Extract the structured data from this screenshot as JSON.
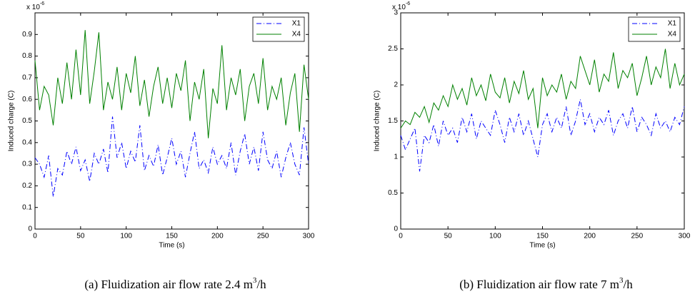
{
  "chart_data": [
    {
      "type": "line",
      "ylabel": "Induced charge (C)",
      "xlabel": "Time (s)",
      "multiplier": "x 10",
      "multiplier_exp": "-6",
      "caption": {
        "text": "(a) Fluidization air flow rate 2.4 m",
        "sup": "3",
        "tail": "/h"
      },
      "xlim": [
        0,
        300
      ],
      "xticks": [
        0,
        50,
        100,
        150,
        200,
        250,
        300
      ],
      "ylim": [
        0,
        1
      ],
      "yticks": [
        0,
        0.1,
        0.2,
        0.3,
        0.4,
        0.5,
        0.6,
        0.7,
        0.8,
        0.9
      ],
      "legend": "upper right",
      "x": [
        0,
        5,
        10,
        15,
        20,
        25,
        30,
        35,
        40,
        45,
        50,
        55,
        60,
        65,
        70,
        75,
        80,
        85,
        90,
        95,
        100,
        105,
        110,
        115,
        120,
        125,
        130,
        135,
        140,
        145,
        150,
        155,
        160,
        165,
        170,
        175,
        180,
        185,
        190,
        195,
        200,
        205,
        210,
        215,
        220,
        225,
        230,
        235,
        240,
        245,
        250,
        255,
        260,
        265,
        270,
        275,
        280,
        285,
        290,
        295,
        300
      ],
      "series": [
        {
          "name": "X1",
          "color": "#0000ff",
          "dashed": true,
          "values": [
            0.33,
            0.3,
            0.24,
            0.34,
            0.15,
            0.28,
            0.25,
            0.36,
            0.3,
            0.38,
            0.27,
            0.32,
            0.22,
            0.35,
            0.3,
            0.37,
            0.26,
            0.52,
            0.33,
            0.4,
            0.28,
            0.36,
            0.31,
            0.48,
            0.27,
            0.34,
            0.29,
            0.39,
            0.25,
            0.33,
            0.42,
            0.3,
            0.36,
            0.24,
            0.35,
            0.45,
            0.28,
            0.32,
            0.26,
            0.38,
            0.3,
            0.34,
            0.28,
            0.4,
            0.25,
            0.36,
            0.44,
            0.3,
            0.38,
            0.27,
            0.45,
            0.32,
            0.28,
            0.36,
            0.24,
            0.33,
            0.4,
            0.3,
            0.25,
            0.47,
            0.3
          ]
        },
        {
          "name": "X4",
          "color": "#008000",
          "dashed": false,
          "values": [
            0.78,
            0.55,
            0.66,
            0.62,
            0.48,
            0.7,
            0.58,
            0.77,
            0.6,
            0.83,
            0.62,
            0.92,
            0.58,
            0.73,
            0.91,
            0.55,
            0.68,
            0.6,
            0.75,
            0.55,
            0.72,
            0.63,
            0.8,
            0.57,
            0.69,
            0.52,
            0.66,
            0.75,
            0.58,
            0.7,
            0.56,
            0.72,
            0.64,
            0.78,
            0.5,
            0.68,
            0.6,
            0.74,
            0.42,
            0.65,
            0.58,
            0.85,
            0.55,
            0.7,
            0.62,
            0.74,
            0.5,
            0.66,
            0.72,
            0.58,
            0.79,
            0.55,
            0.66,
            0.6,
            0.7,
            0.48,
            0.63,
            0.72,
            0.45,
            0.76,
            0.6
          ]
        }
      ]
    },
    {
      "type": "line",
      "ylabel": "Induced charge (C)",
      "xlabel": "Time (s)",
      "multiplier": "x 10",
      "multiplier_exp": "-6",
      "caption": {
        "text": "(b) Fluidization air flow rate 7 m",
        "sup": "3",
        "tail": "/h"
      },
      "xlim": [
        0,
        300
      ],
      "xticks": [
        0,
        50,
        100,
        150,
        200,
        250,
        300
      ],
      "ylim": [
        0,
        3
      ],
      "yticks": [
        0,
        0.5,
        1,
        1.5,
        2,
        2.5,
        3
      ],
      "legend": "upper right",
      "x": [
        0,
        5,
        10,
        15,
        20,
        25,
        30,
        35,
        40,
        45,
        50,
        55,
        60,
        65,
        70,
        75,
        80,
        85,
        90,
        95,
        100,
        105,
        110,
        115,
        120,
        125,
        130,
        135,
        140,
        145,
        150,
        155,
        160,
        165,
        170,
        175,
        180,
        185,
        190,
        195,
        200,
        205,
        210,
        215,
        220,
        225,
        230,
        235,
        240,
        245,
        250,
        255,
        260,
        265,
        270,
        275,
        280,
        285,
        290,
        295,
        300
      ],
      "series": [
        {
          "name": "X1",
          "color": "#0000ff",
          "dashed": true,
          "values": [
            1.3,
            1.1,
            1.25,
            1.4,
            0.8,
            1.3,
            1.2,
            1.45,
            1.15,
            1.5,
            1.3,
            1.4,
            1.2,
            1.55,
            1.35,
            1.6,
            1.25,
            1.5,
            1.4,
            1.3,
            1.65,
            1.45,
            1.2,
            1.55,
            1.35,
            1.6,
            1.3,
            1.5,
            1.25,
            1.0,
            1.45,
            1.6,
            1.35,
            1.55,
            1.4,
            1.7,
            1.3,
            1.5,
            1.8,
            1.45,
            1.6,
            1.35,
            1.55,
            1.45,
            1.65,
            1.3,
            1.5,
            1.6,
            1.4,
            1.7,
            1.35,
            1.55,
            1.45,
            1.3,
            1.6,
            1.4,
            1.5,
            1.35,
            1.55,
            1.45,
            1.7
          ]
        },
        {
          "name": "X4",
          "color": "#008000",
          "dashed": false,
          "values": [
            1.4,
            1.5,
            1.45,
            1.62,
            1.55,
            1.7,
            1.48,
            1.75,
            1.65,
            1.85,
            1.7,
            2.0,
            1.8,
            1.95,
            1.72,
            2.1,
            1.85,
            2.0,
            1.78,
            2.15,
            1.9,
            1.82,
            2.1,
            1.75,
            2.05,
            1.88,
            2.2,
            1.8,
            1.95,
            1.4,
            2.1,
            1.85,
            2.0,
            1.9,
            2.15,
            1.8,
            2.05,
            1.95,
            2.4,
            2.2,
            2.0,
            2.35,
            1.9,
            2.15,
            2.05,
            2.45,
            1.95,
            2.2,
            2.1,
            2.3,
            1.85,
            2.1,
            2.4,
            2.0,
            2.25,
            2.1,
            2.5,
            1.95,
            2.3,
            2.0,
            2.15
          ]
        }
      ]
    }
  ]
}
